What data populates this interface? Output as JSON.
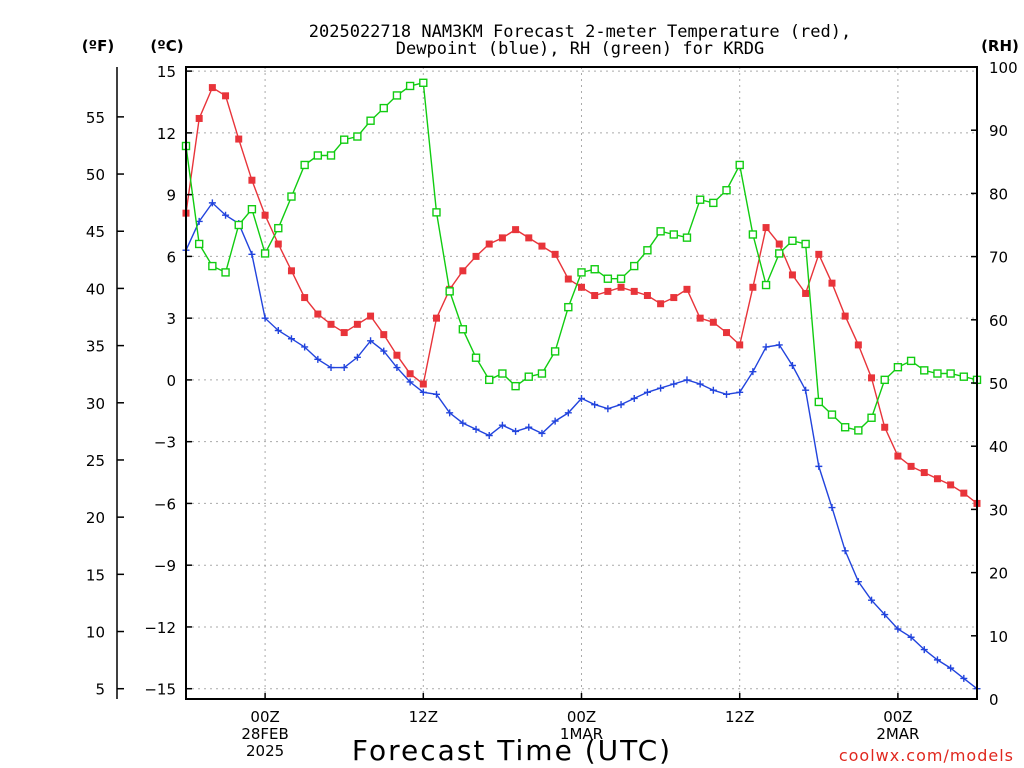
{
  "chart_data": {
    "type": "line",
    "title_line1": "2025022718 NAM3KM Forecast 2-meter Temperature (red),",
    "title_line2": "Dewpoint (blue), RH (green) for KRDG",
    "left_outer_unit": "(ºF)",
    "left_unit": "(ºC)",
    "right_unit": "(RH)",
    "xlabel": "Forecast Time (UTC)",
    "credit": "coolwx.com/models",
    "x_hours_start": 0,
    "x_hours_end": 60,
    "x_ticks": [
      {
        "hour": 6,
        "lines": [
          "00Z",
          "28FEB",
          "2025"
        ]
      },
      {
        "hour": 18,
        "lines": [
          "12Z"
        ]
      },
      {
        "hour": 30,
        "lines": [
          "00Z",
          "1MAR"
        ]
      },
      {
        "hour": 42,
        "lines": [
          "12Z"
        ]
      },
      {
        "hour": 54,
        "lines": [
          "00Z",
          "2MAR"
        ]
      }
    ],
    "c_ticks": [
      15,
      12,
      9,
      6,
      3,
      0,
      -3,
      -6,
      -9,
      -12,
      -15
    ],
    "c_tick_labels": [
      "15",
      "12",
      "9",
      "6",
      "3",
      "0",
      "−3",
      "−6",
      "−9",
      "−12",
      "−15"
    ],
    "f_ticks": [
      55,
      50,
      45,
      40,
      35,
      30,
      25,
      20,
      15,
      10,
      5
    ],
    "rh_ticks": [
      100,
      90,
      80,
      70,
      60,
      50,
      40,
      30,
      20,
      10,
      0
    ],
    "ylim_c": [
      -15.5,
      15.2
    ],
    "ylim_rh": [
      0,
      100
    ],
    "grid": true,
    "colors": {
      "temperature": "#e8343a",
      "dewpoint": "#2244dd",
      "rh": "#11cc11",
      "grid": "#aaaaaa"
    },
    "series": [
      {
        "key": "temperature",
        "name": "2-meter Temperature",
        "axis": "c",
        "marker": "filled-square",
        "values": [
          8.1,
          12.7,
          14.2,
          13.8,
          11.7,
          9.7,
          8.0,
          6.6,
          5.3,
          4.0,
          3.2,
          2.7,
          2.3,
          2.7,
          3.1,
          2.2,
          1.2,
          0.3,
          -0.2,
          3.0,
          4.4,
          5.3,
          6.0,
          6.6,
          6.9,
          7.3,
          6.9,
          6.5,
          6.1,
          4.9,
          4.5,
          4.1,
          4.3,
          4.5,
          4.3,
          4.1,
          3.7,
          4.0,
          4.4,
          3.0,
          2.8,
          2.3,
          1.7,
          4.5,
          7.4,
          6.6,
          5.1,
          4.2,
          6.1,
          4.7,
          3.1,
          1.7,
          0.1,
          -2.3,
          -3.7,
          -4.2,
          -4.5,
          -4.8,
          -5.1,
          -5.5,
          -6.0
        ]
      },
      {
        "key": "dewpoint",
        "name": "Dewpoint",
        "axis": "c",
        "marker": "plus",
        "values": [
          6.3,
          7.7,
          8.6,
          8.0,
          7.6,
          6.1,
          3.0,
          2.4,
          2.0,
          1.6,
          1.0,
          0.6,
          0.6,
          1.1,
          1.9,
          1.4,
          0.6,
          -0.1,
          -0.6,
          -0.7,
          -1.6,
          -2.1,
          -2.4,
          -2.7,
          -2.2,
          -2.5,
          -2.3,
          -2.6,
          -2.0,
          -1.6,
          -0.9,
          -1.2,
          -1.4,
          -1.2,
          -0.9,
          -0.6,
          -0.4,
          -0.2,
          0.0,
          -0.2,
          -0.5,
          -0.7,
          -0.6,
          0.4,
          1.6,
          1.7,
          0.7,
          -0.5,
          -4.2,
          -6.2,
          -8.3,
          -9.8,
          -10.7,
          -11.4,
          -12.1,
          -12.5,
          -13.1,
          -13.6,
          -14.0,
          -14.5,
          -15.0
        ]
      },
      {
        "key": "rh",
        "name": "RH",
        "axis": "rh",
        "marker": "open-square",
        "values": [
          87.5,
          72.0,
          68.5,
          67.5,
          75.0,
          77.5,
          70.5,
          74.5,
          79.5,
          84.5,
          86.0,
          86.0,
          88.5,
          89.0,
          91.5,
          93.5,
          95.5,
          97.0,
          97.5,
          77.0,
          64.5,
          58.5,
          54.0,
          50.5,
          51.5,
          49.5,
          51.0,
          51.5,
          55.0,
          62.0,
          67.5,
          68.0,
          66.5,
          66.5,
          68.5,
          71.0,
          74.0,
          73.5,
          73.0,
          79.0,
          78.5,
          80.5,
          84.5,
          73.5,
          65.5,
          70.5,
          72.5,
          72.0,
          47.0,
          45.0,
          43.0,
          42.5,
          44.5,
          50.5,
          52.5,
          53.5,
          52.0,
          51.5,
          51.5,
          51.0,
          50.5
        ]
      }
    ]
  }
}
